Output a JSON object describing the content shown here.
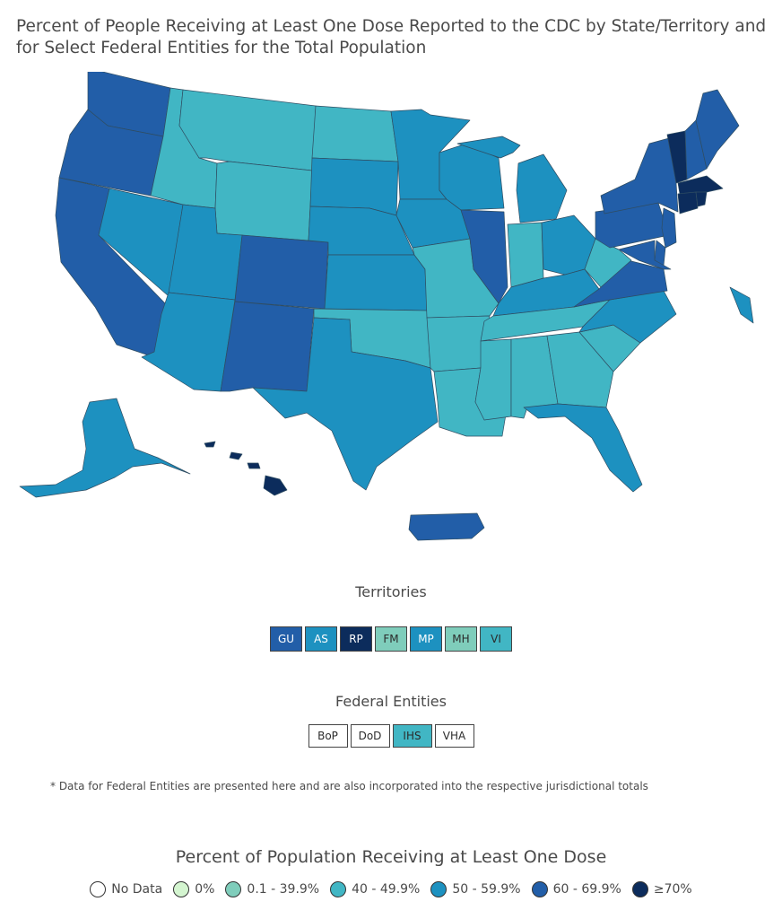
{
  "title": "Percent of People Receiving at Least One Dose Reported to the CDC by State/Territory and for Select Federal Entities for the Total Population",
  "colors": {
    "no_data": "#ffffff",
    "zero": "#d4f5d0",
    "c1": "#7fcdbb",
    "c2": "#41b6c4",
    "c3": "#1d91c0",
    "c4": "#225ea8",
    "c5": "#0c2c5c"
  },
  "states": {
    "WA": "c4",
    "OR": "c4",
    "CA": "c4",
    "NV": "c3",
    "ID": "c2",
    "MT": "c2",
    "WY": "c2",
    "UT": "c3",
    "AZ": "c3",
    "CO": "c4",
    "NM": "c4",
    "ND": "c2",
    "SD": "c3",
    "NE": "c3",
    "KS": "c3",
    "OK": "c2",
    "TX": "c3",
    "MN": "c3",
    "IA": "c3",
    "MO": "c2",
    "AR": "c2",
    "LA": "c2",
    "WI": "c3",
    "IL": "c4",
    "MI": "c3",
    "IN": "c2",
    "OH": "c3",
    "KY": "c3",
    "TN": "c2",
    "MS": "c2",
    "AL": "c2",
    "GA": "c2",
    "FL": "c3",
    "SC": "c2",
    "NC": "c3",
    "VA": "c4",
    "WV": "c2",
    "PA": "c4",
    "NY": "c4",
    "NJ": "c4",
    "DE": "c4",
    "MD": "c4",
    "VT": "c5",
    "NH": "c4",
    "ME": "c4",
    "MA": "c5",
    "CT": "c5",
    "RI": "c5",
    "AK": "c3",
    "HI": "c5",
    "PR": "c4"
  },
  "territories": {
    "title": "Territories",
    "items": [
      {
        "label": "GU",
        "class": "c4"
      },
      {
        "label": "AS",
        "class": "c3"
      },
      {
        "label": "RP",
        "class": "c5"
      },
      {
        "label": "FM",
        "class": "c1"
      },
      {
        "label": "MP",
        "class": "c3"
      },
      {
        "label": "MH",
        "class": "c1"
      },
      {
        "label": "VI",
        "class": "c2"
      }
    ]
  },
  "federal": {
    "title": "Federal Entities",
    "items": [
      {
        "label": "BoP",
        "class": "no_data"
      },
      {
        "label": "DoD",
        "class": "no_data"
      },
      {
        "label": "IHS",
        "class": "c2"
      },
      {
        "label": "VHA",
        "class": "no_data"
      }
    ]
  },
  "note": "* Data for Federal Entities are presented here and are also incorporated into the respective jurisdictional totals",
  "legend": {
    "title": "Percent of Population Receiving at Least One Dose",
    "items": [
      {
        "label": "No Data",
        "class": "no_data"
      },
      {
        "label": "0%",
        "class": "zero"
      },
      {
        "label": "0.1 - 39.9%",
        "class": "c1"
      },
      {
        "label": "40 - 49.9%",
        "class": "c2"
      },
      {
        "label": "50 - 59.9%",
        "class": "c3"
      },
      {
        "label": "60 - 69.9%",
        "class": "c4"
      },
      {
        "label": "≥70%",
        "class": "c5"
      }
    ]
  }
}
